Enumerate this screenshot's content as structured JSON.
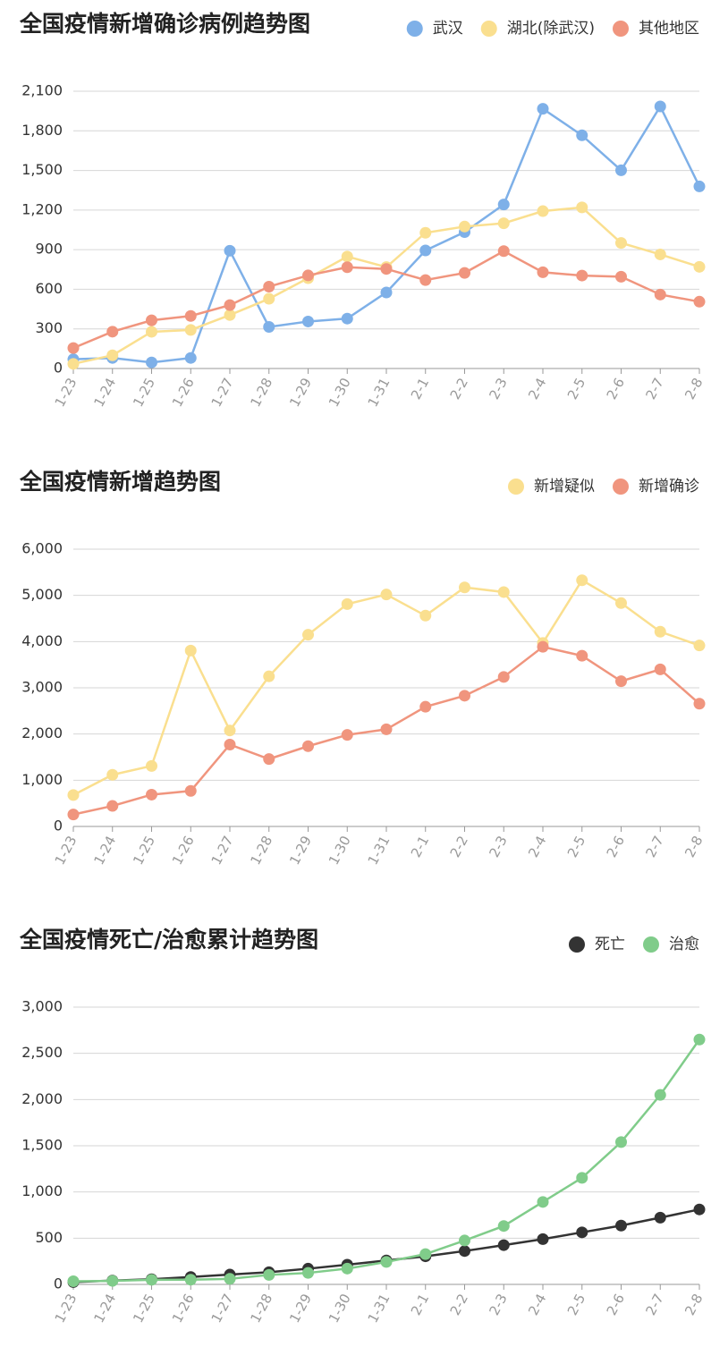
{
  "chart_data": [
    {
      "type": "line",
      "title": "全国疫情新增确诊病例趋势图",
      "categories": [
        "1-23",
        "1-24",
        "1-25",
        "1-26",
        "1-27",
        "1-28",
        "1-29",
        "1-30",
        "1-31",
        "2-1",
        "2-2",
        "2-3",
        "2-4",
        "2-5",
        "2-6",
        "2-7",
        "2-8"
      ],
      "series": [
        {
          "name": "武汉",
          "color": "#7eb0e8",
          "values": [
            70,
            80,
            46,
            80,
            892,
            315,
            356,
            378,
            576,
            894,
            1033,
            1242,
            1967,
            1766,
            1501,
            1985,
            1379
          ]
        },
        {
          "name": "湖北(除武汉)",
          "color": "#fadf8f",
          "values": [
            35,
            100,
            278,
            292,
            405,
            528,
            684,
            848,
            768,
            1028,
            1075,
            1100,
            1192,
            1220,
            951,
            864,
            770
          ]
        },
        {
          "name": "其他地区",
          "color": "#f0957e",
          "values": [
            155,
            279,
            365,
            398,
            480,
            620,
            705,
            767,
            754,
            670,
            724,
            889,
            729,
            704,
            695,
            560,
            506
          ]
        }
      ],
      "ylim": [
        0,
        2100
      ],
      "yticks": [
        0,
        300,
        600,
        900,
        {
          "value": 1200,
          "label": "1,200"
        },
        {
          "value": 1500,
          "label": "1,500"
        },
        {
          "value": 1800,
          "label": "1,800"
        },
        {
          "value": 2100,
          "label": "2,100"
        }
      ],
      "grid": true
    },
    {
      "type": "line",
      "title": "全国疫情新增趋势图",
      "categories": [
        "1-23",
        "1-24",
        "1-25",
        "1-26",
        "1-27",
        "1-28",
        "1-29",
        "1-30",
        "1-31",
        "2-1",
        "2-2",
        "2-3",
        "2-4",
        "2-5",
        "2-6",
        "2-7",
        "2-8"
      ],
      "series": [
        {
          "name": "新增疑似",
          "color": "#fadf8f",
          "values": [
            680,
            1118,
            1309,
            3806,
            2077,
            3248,
            4148,
            4812,
            5019,
            4562,
            5173,
            5072,
            3971,
            5328,
            4833,
            4214,
            3916
          ]
        },
        {
          "name": "新增确诊",
          "color": "#f0957e",
          "values": [
            259,
            444,
            688,
            769,
            1771,
            1459,
            1737,
            1982,
            2102,
            2590,
            2829,
            3235,
            3887,
            3694,
            3143,
            3399,
            2656
          ]
        }
      ],
      "ylim": [
        0,
        6000
      ],
      "yticks": [
        0,
        {
          "value": 1000,
          "label": "1,000"
        },
        {
          "value": 2000,
          "label": "2,000"
        },
        {
          "value": 3000,
          "label": "3,000"
        },
        {
          "value": 4000,
          "label": "4,000"
        },
        {
          "value": 5000,
          "label": "5,000"
        },
        {
          "value": 6000,
          "label": "6,000"
        }
      ],
      "grid": true
    },
    {
      "type": "line",
      "title": "全国疫情死亡/治愈累计趋势图",
      "categories": [
        "1-23",
        "1-24",
        "1-25",
        "1-26",
        "1-27",
        "1-28",
        "1-29",
        "1-30",
        "1-31",
        "2-1",
        "2-2",
        "2-3",
        "2-4",
        "2-5",
        "2-6",
        "2-7",
        "2-8"
      ],
      "series": [
        {
          "name": "死亡",
          "color": "#333333",
          "values": [
            25,
            41,
            56,
            80,
            106,
            132,
            170,
            213,
            259,
            304,
            361,
            425,
            490,
            563,
            636,
            722,
            811
          ]
        },
        {
          "name": "治愈",
          "color": "#80cc8a",
          "values": [
            34,
            38,
            49,
            51,
            60,
            103,
            124,
            171,
            243,
            328,
            475,
            632,
            892,
            1153,
            1540,
            2050,
            2649
          ]
        }
      ],
      "ylim": [
        0,
        3000
      ],
      "yticks": [
        0,
        500,
        {
          "value": 1000,
          "label": "1,000"
        },
        {
          "value": 1500,
          "label": "1,500"
        },
        {
          "value": 2000,
          "label": "2,000"
        },
        {
          "value": 2500,
          "label": "2,500"
        },
        {
          "value": 3000,
          "label": "3,000"
        }
      ],
      "grid": true
    }
  ]
}
